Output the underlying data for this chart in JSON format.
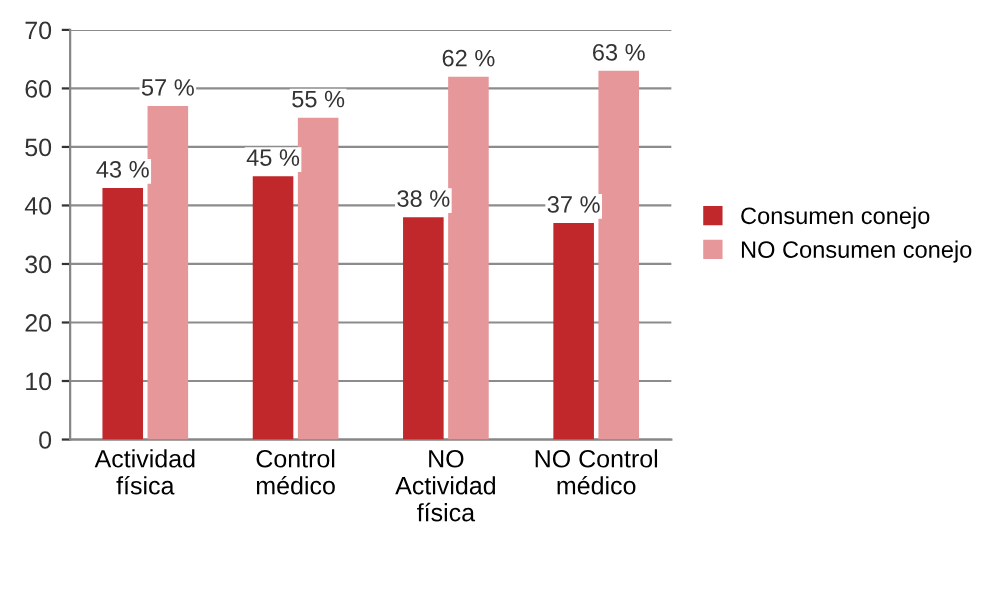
{
  "chart_data": {
    "type": "bar",
    "categories": [
      "Actividad\nfísica",
      "Control\nmédico",
      "NO\nActividad\nfísica",
      "NO Control\nmédico"
    ],
    "series": [
      {
        "name": "Consumen conejo",
        "color": "#c0282c",
        "values": [
          43,
          45,
          38,
          37
        ],
        "value_labels": [
          "43 %",
          "45 %",
          "38 %",
          "37 %"
        ]
      },
      {
        "name": "NO Consumen conejo",
        "color": "#e6979a",
        "values": [
          57,
          55,
          62,
          63
        ],
        "value_labels": [
          "57 %",
          "55 %",
          "62 %",
          "63 %"
        ]
      }
    ],
    "ylim": [
      0,
      70
    ],
    "yticks": [
      0,
      10,
      20,
      30,
      40,
      50,
      60,
      70
    ],
    "grid": "y",
    "legend": "right"
  }
}
